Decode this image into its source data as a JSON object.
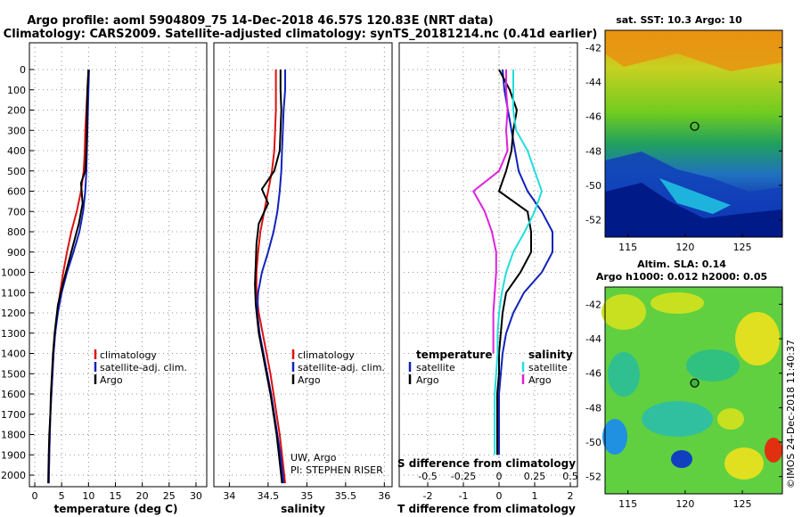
{
  "title": {
    "line1": "Argo profile: aoml 5904809_75 14-Dec-2018 46.57S 120.83E (NRT data)",
    "line2": "Climatology: CARS2009. Satellite-adjusted climatology: synTS_20181214.nc (0.41d earlier)"
  },
  "chart_data": [
    {
      "type": "line",
      "name": "temperature-profile",
      "xlabel": "temperature (deg C)",
      "xlim": [
        -1,
        32
      ],
      "ylim": [
        0,
        2060
      ],
      "xticks": [
        "0",
        "5",
        "10",
        "15",
        "20",
        "25",
        "30"
      ],
      "legend": [
        "climatology",
        "satellite-adj. clim.",
        "Argo"
      ],
      "series": [
        {
          "name": "climatology",
          "color": "#dd1111",
          "x": [
            10.0,
            9.8,
            9.6,
            9.4,
            9.3,
            9.1,
            8.6,
            7.8,
            6.8,
            6.0,
            5.3,
            4.7,
            4.2,
            3.8,
            3.5,
            3.3,
            3.1,
            2.9,
            2.8,
            2.7,
            2.6
          ],
          "y": [
            0,
            100,
            200,
            300,
            400,
            500,
            600,
            700,
            800,
            900,
            1000,
            1100,
            1200,
            1300,
            1400,
            1500,
            1600,
            1700,
            1800,
            1900,
            2040
          ]
        },
        {
          "name": "satellite-adj. clim.",
          "color": "#1122bb",
          "x": [
            10.1,
            10.0,
            9.9,
            9.8,
            9.7,
            9.6,
            9.4,
            9.0,
            8.3,
            7.2,
            6.0,
            5.0,
            4.3,
            3.8,
            3.5,
            3.3,
            3.1,
            2.9,
            2.8,
            2.7,
            2.6
          ],
          "y": [
            0,
            100,
            200,
            300,
            400,
            500,
            600,
            700,
            800,
            900,
            1000,
            1100,
            1200,
            1300,
            1400,
            1500,
            1600,
            1700,
            1800,
            1900,
            2040
          ]
        },
        {
          "name": "Argo",
          "color": "#000000",
          "x": [
            10.0,
            9.8,
            9.7,
            9.7,
            9.6,
            9.4,
            8.6,
            8.9,
            8.2,
            7.2,
            6.2,
            5.2,
            4.3,
            3.7,
            3.4,
            3.2,
            3.0,
            2.9,
            2.7,
            2.6,
            2.5
          ],
          "y": [
            0,
            100,
            200,
            300,
            400,
            500,
            560,
            660,
            760,
            860,
            960,
            1060,
            1160,
            1300,
            1400,
            1500,
            1600,
            1700,
            1800,
            1900,
            2040
          ]
        }
      ]
    },
    {
      "type": "line",
      "name": "salinity-profile",
      "xlabel": "salinity",
      "xlim": [
        33.8,
        36.1
      ],
      "ylim": [
        0,
        2060
      ],
      "xticks": [
        "34",
        "34.5",
        "35",
        "35.5",
        "36"
      ],
      "legend": [
        "climatology",
        "satellite-adj. clim.",
        "Argo"
      ],
      "credits": [
        "UW, Argo",
        "PI: STEPHEN RISER"
      ],
      "series": [
        {
          "name": "climatology",
          "color": "#dd1111",
          "x": [
            34.6,
            34.6,
            34.6,
            34.59,
            34.58,
            34.55,
            34.5,
            34.45,
            34.4,
            34.37,
            34.35,
            34.35,
            34.38,
            34.43,
            34.48,
            34.53,
            34.57,
            34.61,
            34.65,
            34.68,
            34.72
          ],
          "y": [
            0,
            100,
            200,
            300,
            400,
            500,
            600,
            700,
            800,
            900,
            1000,
            1100,
            1200,
            1300,
            1400,
            1500,
            1600,
            1700,
            1800,
            1900,
            2040
          ]
        },
        {
          "name": "satellite-adj. clim.",
          "color": "#1122bb",
          "x": [
            34.72,
            34.72,
            34.7,
            34.69,
            34.68,
            34.67,
            34.65,
            34.62,
            34.57,
            34.5,
            34.42,
            34.37,
            34.36,
            34.39,
            34.44,
            34.49,
            34.54,
            34.58,
            34.62,
            34.66,
            34.7
          ],
          "y": [
            0,
            100,
            200,
            300,
            400,
            500,
            600,
            700,
            800,
            900,
            1000,
            1100,
            1200,
            1300,
            1400,
            1500,
            1600,
            1700,
            1800,
            1900,
            2040
          ]
        },
        {
          "name": "Argo",
          "color": "#000000",
          "x": [
            34.66,
            34.66,
            34.67,
            34.66,
            34.65,
            34.58,
            34.42,
            34.5,
            34.38,
            34.35,
            34.34,
            34.33,
            34.34,
            34.38,
            34.43,
            34.48,
            34.53,
            34.57,
            34.61,
            34.64,
            34.68
          ],
          "y": [
            0,
            100,
            200,
            300,
            400,
            500,
            590,
            660,
            760,
            860,
            960,
            1060,
            1160,
            1300,
            1400,
            1500,
            1600,
            1700,
            1800,
            1900,
            2040
          ]
        }
      ]
    },
    {
      "type": "line",
      "name": "difference-profile",
      "xlabel": "T difference from climatology",
      "xlabel2": "S difference from climatology",
      "xlim": [
        -2.8,
        2.2
      ],
      "ylim": [
        0,
        2060
      ],
      "xticks": [
        "-2",
        "-1",
        "0",
        "1",
        "2"
      ],
      "xticks2": [
        "-0.5",
        "-0.25",
        "0",
        "0.25",
        "0.5"
      ],
      "legend_temperature_title": "temperature",
      "legend_salinity_title": "salinity",
      "legend": [
        "satellite",
        "Argo"
      ],
      "series": [
        {
          "name": "temperature satellite",
          "color": "#1122bb",
          "x": [
            0.1,
            0.15,
            0.25,
            0.35,
            0.45,
            0.55,
            0.8,
            1.2,
            1.5,
            1.5,
            1.2,
            0.7,
            0.4,
            0.2,
            0.1,
            0.05,
            0.0,
            0.0,
            0.0,
            0.0
          ],
          "y": [
            0,
            100,
            200,
            300,
            400,
            500,
            600,
            700,
            800,
            900,
            1000,
            1100,
            1200,
            1300,
            1400,
            1500,
            1600,
            1700,
            1800,
            1900
          ]
        },
        {
          "name": "temperature Argo",
          "color": "#000000",
          "x": [
            0.0,
            0.3,
            0.5,
            0.4,
            0.35,
            0.2,
            0.0,
            0.8,
            0.9,
            0.9,
            0.6,
            0.2,
            0.1,
            0.05,
            0.0,
            0.0,
            -0.05,
            -0.05,
            -0.05,
            -0.05
          ],
          "y": [
            0,
            100,
            200,
            300,
            400,
            500,
            600,
            700,
            800,
            900,
            1000,
            1100,
            1200,
            1300,
            1400,
            1500,
            1600,
            1700,
            1800,
            1900
          ]
        },
        {
          "name": "salinity satellite",
          "color": "#22dddd",
          "x": [
            0.1,
            0.1,
            0.1,
            0.12,
            0.2,
            0.25,
            0.3,
            0.25,
            0.18,
            0.1,
            0.05,
            0.02,
            0.0,
            -0.01,
            -0.01,
            -0.02,
            -0.03,
            -0.03,
            -0.03,
            -0.03
          ],
          "y": [
            0,
            100,
            200,
            300,
            400,
            500,
            600,
            700,
            800,
            900,
            1000,
            1100,
            1200,
            1300,
            1400,
            1500,
            1600,
            1700,
            1800,
            1900
          ]
        },
        {
          "name": "salinity Argo",
          "color": "#dd22dd",
          "x": [
            0.05,
            0.05,
            0.06,
            0.05,
            0.06,
            0.0,
            -0.18,
            -0.1,
            -0.05,
            -0.02,
            -0.02,
            -0.03,
            -0.04,
            -0.04,
            -0.04
          ],
          "y": [
            0,
            100,
            200,
            300,
            400,
            500,
            600,
            700,
            800,
            900,
            1000,
            1100,
            1200,
            1300,
            1400
          ]
        }
      ]
    },
    {
      "type": "heatmap",
      "name": "sst-map",
      "title": "sat. SST: 10.3 Argo: 10",
      "xticks": [
        "115",
        "120",
        "125"
      ],
      "yticks": [
        "-42",
        "-44",
        "-46",
        "-48",
        "-50",
        "-52"
      ],
      "xlim": [
        113,
        128.5
      ],
      "ylim": [
        -53,
        -41
      ],
      "argo_position": [
        120.83,
        -46.57
      ]
    },
    {
      "type": "heatmap",
      "name": "sla-map",
      "title": "Altim. SLA: 0.14",
      "subtitle": "Argo h1000: 0.012 h2000: 0.05",
      "xticks": [
        "115",
        "120",
        "125"
      ],
      "yticks": [
        "-42",
        "-44",
        "-46",
        "-48",
        "-50",
        "-52"
      ],
      "xlim": [
        113,
        128.5
      ],
      "ylim": [
        -53,
        -41
      ],
      "argo_position": [
        120.83,
        -46.57
      ]
    }
  ],
  "depth_ticks": [
    "0",
    "100",
    "200",
    "300",
    "400",
    "500",
    "600",
    "700",
    "800",
    "900",
    "1000",
    "1100",
    "1200",
    "1300",
    "1400",
    "1500",
    "1600",
    "1700",
    "1800",
    "1900",
    "2000"
  ],
  "watermark": "©IMOS 24-Dec-2018 11:40:37"
}
